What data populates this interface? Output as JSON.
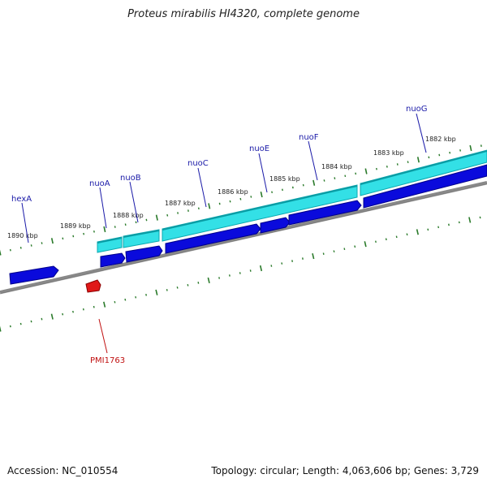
{
  "title": "Proteus mirabilis HI4320, complete genome",
  "accession_text": "Accession: NC_010554",
  "summary_text": "Topology: circular; Length: 4,063,606 bp; Genes: 3,729",
  "colors": {
    "backbone": "#888888",
    "tick": "#2a7a2a",
    "cds": "#0a0adc",
    "cds_outline": "#00008a",
    "gene": "#33e0e6",
    "gene_outline": "#0aa8b0",
    "pseudo": "#e01818",
    "label_blue": "#1a1aa8",
    "label_red": "#c01010"
  },
  "scale_labels": [
    "1890 kbp",
    "1889 kbp",
    "1888 kbp",
    "1887 kbp",
    "1886 kbp",
    "1885 kbp",
    "1884 kbp",
    "1883 kbp",
    "1882 kbp"
  ],
  "genes": [
    {
      "name": "hexA",
      "color": "blue"
    },
    {
      "name": "nuoA",
      "color": "blue"
    },
    {
      "name": "nuoB",
      "color": "blue"
    },
    {
      "name": "nuoC",
      "color": "blue"
    },
    {
      "name": "nuoE",
      "color": "blue"
    },
    {
      "name": "nuoF",
      "color": "blue"
    },
    {
      "name": "nuoG",
      "color": "blue"
    },
    {
      "name": "PMI1763",
      "color": "red"
    }
  ]
}
